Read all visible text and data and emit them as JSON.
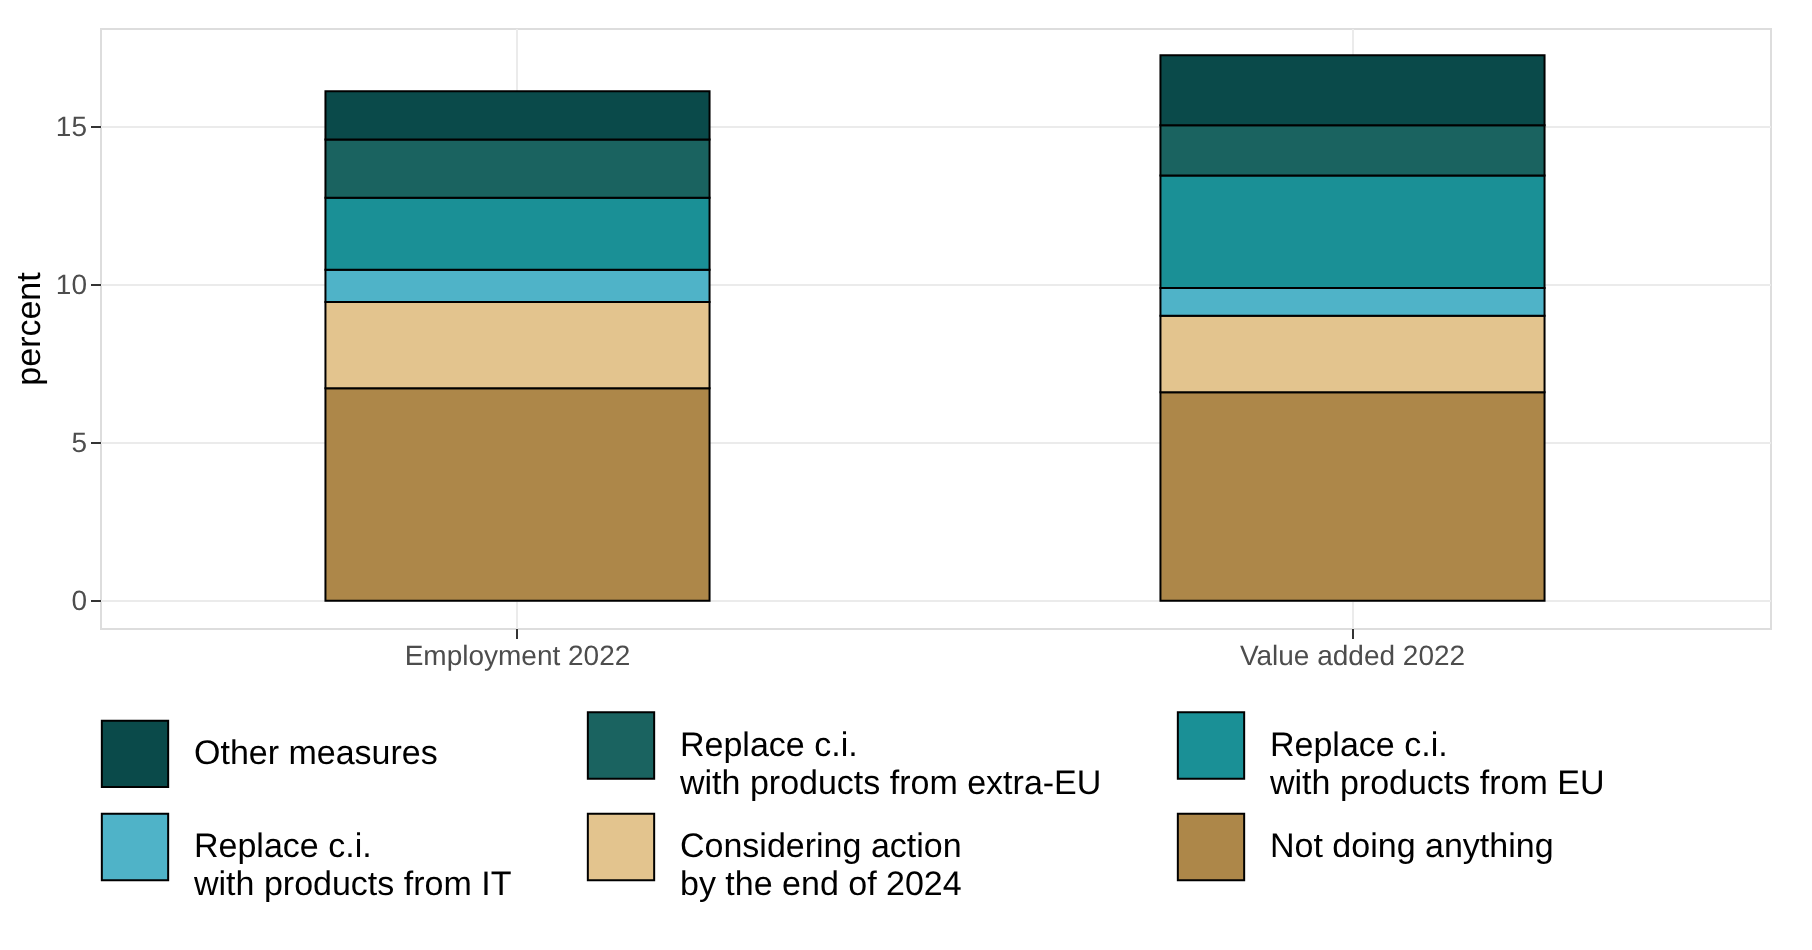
{
  "chart_data": {
    "type": "bar",
    "stacked": true,
    "ylabel": "percent",
    "categories": [
      "Employment 2022",
      "Value added 2022"
    ],
    "ylim": [
      -0.86,
      18.13
    ],
    "yticks": [
      0,
      5,
      10,
      15
    ],
    "grid": true,
    "legend": "bottom",
    "series": [
      {
        "name": "Not doing anything",
        "color": "#ad8749",
        "values": [
          6.73,
          6.6
        ]
      },
      {
        "name": "Considering action\nby the end of 2024",
        "color": "#e3c48e",
        "values": [
          2.73,
          2.42
        ]
      },
      {
        "name": "Replace c.i.\nwith products from IT",
        "color": "#4fb3c8",
        "values": [
          1.02,
          0.88
        ]
      },
      {
        "name": "Replace c.i.\nwith products from EU",
        "color": "#1a9096",
        "values": [
          2.28,
          3.56
        ]
      },
      {
        "name": "Replace c.i.\nwith products from extra-EU",
        "color": "#1a6360",
        "values": [
          1.84,
          1.59
        ]
      },
      {
        "name": "Other measures",
        "color": "#0a4a4a",
        "values": [
          1.53,
          2.22
        ]
      }
    ]
  }
}
